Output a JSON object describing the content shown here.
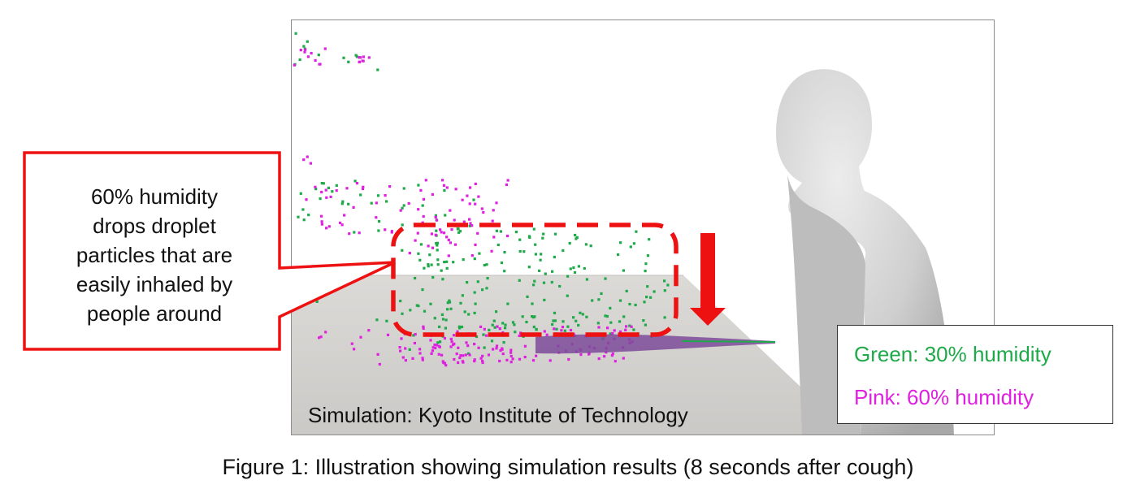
{
  "simulation": {
    "credit": "Simulation: Kyoto Institute of Technology"
  },
  "callout": {
    "lines": [
      "60% humidity",
      "drops droplet",
      "particles that are",
      "easily inhaled by",
      "people around"
    ]
  },
  "legend": {
    "green_label": "Green: 30% humidity",
    "pink_label": "Pink: 60% humidity"
  },
  "caption": "Figure 1: Illustration showing simulation results (8 seconds after cough)",
  "colors": {
    "green_particles": "#1faa4a",
    "pink_particles": "#e020e0",
    "callout_red": "#ee1111",
    "floor": "#d3d1ce",
    "mannequin": "#c9c9c9"
  }
}
